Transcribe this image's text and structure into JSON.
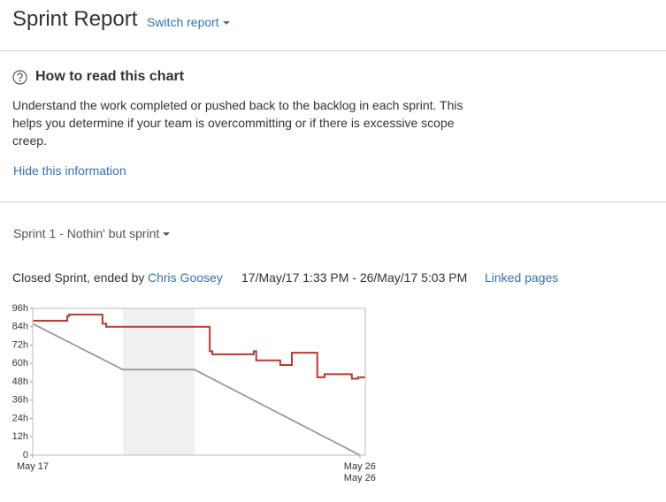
{
  "header": {
    "title": "Sprint Report",
    "switch": "Switch report"
  },
  "info": {
    "heading": "How to read this chart",
    "text": "Understand the work completed or pushed back to the backlog in each sprint. This helps you determine if your team is overcommitting or if there is excessive scope creep.",
    "hide": "Hide this information"
  },
  "sprint": {
    "selector": "Sprint 1 - Nothin' but sprint",
    "status": "Closed Sprint, ended by",
    "user": "Chris Goosey",
    "dates": "17/May/17 1:33 PM - 26/May/17 5:03 PM",
    "linked": "Linked pages"
  },
  "chart_data": {
    "type": "line",
    "step": "after",
    "xlim": [
      17,
      26.15
    ],
    "xticks": [
      {
        "value": 17,
        "label": "May 17"
      },
      {
        "value": 26,
        "label": "May 26"
      }
    ],
    "end_label": "May 26",
    "ylim": [
      0,
      96
    ],
    "yticks": [
      0,
      {
        "value": 12,
        "label": "12h"
      },
      {
        "value": 24,
        "label": "24h"
      },
      {
        "value": 36,
        "label": "36h"
      },
      {
        "value": 48,
        "label": "48h"
      },
      {
        "value": 60,
        "label": "60h"
      },
      {
        "value": 72,
        "label": "72h"
      },
      {
        "value": 84,
        "label": "84h"
      },
      {
        "value": 96,
        "label": "96h"
      }
    ],
    "non_working": [
      19.48,
      21.45
    ],
    "shade_color": "#f0f0f0",
    "series": [
      {
        "color": "#b83a2e",
        "step": true,
        "x": [
          17,
          17.95,
          18.0,
          18.92,
          19.02,
          21.87,
          21.94,
          23.08,
          23.15,
          23.81,
          24.13,
          24.83,
          25.03,
          25.78,
          25.95,
          26.15
        ],
        "values": [
          88,
          91,
          92,
          86,
          84,
          68,
          66,
          68,
          62,
          59,
          67,
          51,
          53,
          50,
          51,
          51
        ]
      },
      {
        "color": "#999999",
        "step": false,
        "x": [
          17,
          19.48,
          21.45,
          26
        ],
        "values": [
          86,
          56,
          56,
          0
        ]
      }
    ]
  }
}
